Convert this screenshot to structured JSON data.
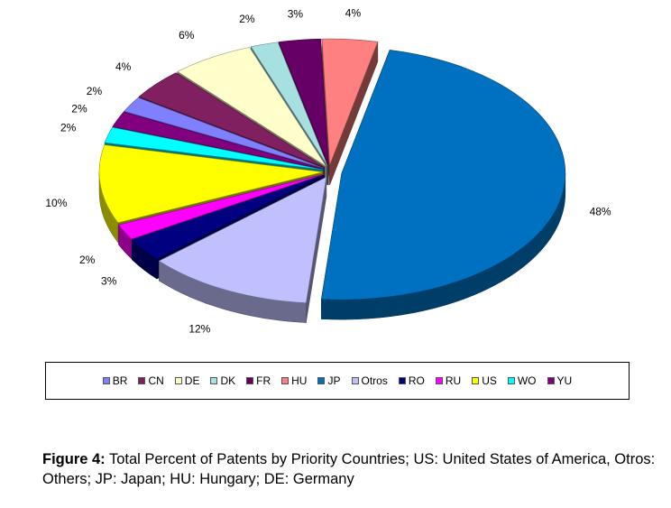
{
  "chart_data": {
    "type": "pie",
    "pie_style": "3d-exploded",
    "legend_position": "bottom",
    "slices": [
      {
        "label": "HU",
        "value": 4,
        "value_label": "4%",
        "color": "#ff8080"
      },
      {
        "label": "JP",
        "value": 48,
        "value_label": "48%",
        "color": "#0070c0"
      },
      {
        "label": "Otros",
        "value": 12,
        "value_label": "12%",
        "color": "#c0c0ff"
      },
      {
        "label": "RO",
        "value": 3,
        "value_label": "3%",
        "color": "#000080"
      },
      {
        "label": "RU",
        "value": 2,
        "value_label": "2%",
        "color": "#ff00ff"
      },
      {
        "label": "US",
        "value": 10,
        "value_label": "10%",
        "color": "#ffff00"
      },
      {
        "label": "WO",
        "value": 2,
        "value_label": "2%",
        "color": "#00ffff"
      },
      {
        "label": "YU",
        "value": 2,
        "value_label": "2%",
        "color": "#800080"
      },
      {
        "label": "BR",
        "value": 2,
        "value_label": "2%",
        "color": "#8080ff"
      },
      {
        "label": "CN",
        "value": 4,
        "value_label": "4%",
        "color": "#802060"
      },
      {
        "label": "DE",
        "value": 6,
        "value_label": "6%",
        "color": "#ffffcc"
      },
      {
        "label": "DK",
        "value": 2,
        "value_label": "2%",
        "color": "#a6e0e0"
      },
      {
        "label": "FR",
        "value": 3,
        "value_label": "3%",
        "color": "#660066"
      }
    ],
    "legend": [
      {
        "label": "BR",
        "color": "#8080ff"
      },
      {
        "label": "CN",
        "color": "#802060"
      },
      {
        "label": "DE",
        "color": "#ffffcc"
      },
      {
        "label": "DK",
        "color": "#a6e0e0"
      },
      {
        "label": "FR",
        "color": "#660066"
      },
      {
        "label": "HU",
        "color": "#ff8080"
      },
      {
        "label": "JP",
        "color": "#0070c0"
      },
      {
        "label": "Otros",
        "color": "#c0c0ff"
      },
      {
        "label": "RO",
        "color": "#000080"
      },
      {
        "label": "RU",
        "color": "#ff00ff"
      },
      {
        "label": "US",
        "color": "#ffff00"
      },
      {
        "label": "WO",
        "color": "#00ffff"
      },
      {
        "label": "YU",
        "color": "#800080"
      }
    ]
  },
  "caption": {
    "label": "Figure 4:",
    "text": " Total Percent of Patents by Priority Countries; US: United States of America, Otros: Others; JP: Japan; HU: Hungary; DE: Germany"
  }
}
